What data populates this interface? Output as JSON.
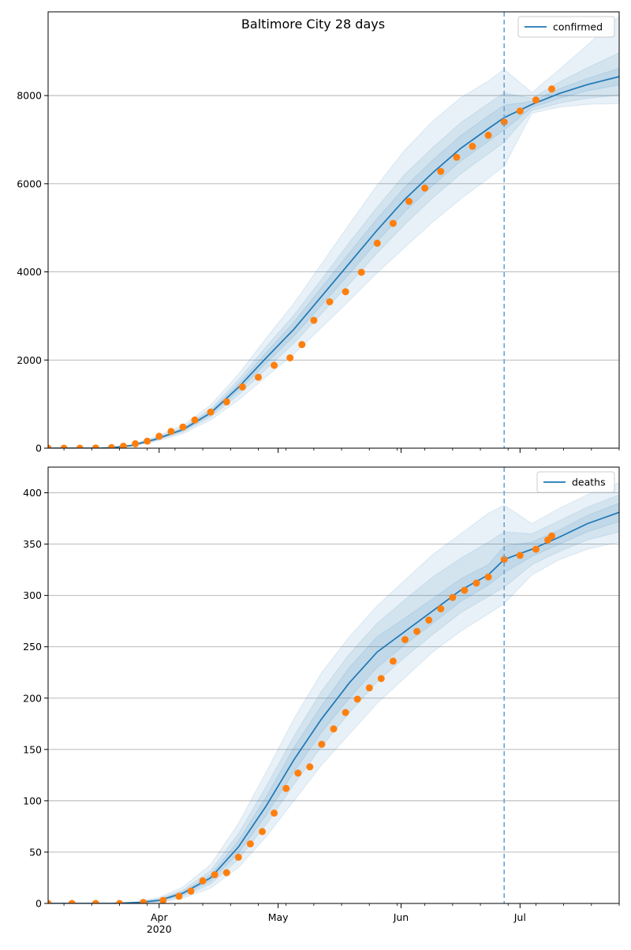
{
  "title": "Baltimore City 28 days",
  "colors": {
    "fit_line": "#1f77b4",
    "observed": "#ff7f0e",
    "band": "#1f77b4",
    "grid": "#b0b0b0",
    "forecast_divider": "#6aa4d6"
  },
  "x_axis": {
    "tick_labels": [
      "Apr",
      "May",
      "Jun",
      "Jul"
    ],
    "tick_dates": [
      "2020-04-01",
      "2020-05-01",
      "2020-06-01",
      "2020-07-01"
    ],
    "year_label": "2020",
    "range": [
      "2020-03-04",
      "2020-07-26"
    ],
    "minor_ticks": "weekly"
  },
  "chart_data": [
    {
      "type": "line",
      "legend": "confirmed",
      "legend_position": "top-right",
      "grid": "horizontal",
      "ylim": [
        0,
        9900
      ],
      "yticks": [
        0,
        2000,
        4000,
        6000,
        8000
      ],
      "forecast_start": "2020-06-27",
      "fit": {
        "name": "confirmed",
        "x": [
          "2020-03-04",
          "2020-03-10",
          "2020-03-17",
          "2020-03-20",
          "2020-03-25",
          "2020-03-31",
          "2020-04-07",
          "2020-04-14",
          "2020-04-21",
          "2020-04-28",
          "2020-05-05",
          "2020-05-12",
          "2020-05-19",
          "2020-05-26",
          "2020-06-02",
          "2020-06-09",
          "2020-06-16",
          "2020-06-23",
          "2020-06-27",
          "2020-07-04",
          "2020-07-11",
          "2020-07-18",
          "2020-07-26"
        ],
        "y": [
          0,
          0,
          0,
          10,
          60,
          200,
          420,
          800,
          1380,
          2050,
          2700,
          3450,
          4200,
          4950,
          5650,
          6250,
          6800,
          7250,
          7500,
          7800,
          8050,
          8250,
          8430
        ]
      },
      "bands": [
        {
          "level": "outer",
          "lower": [
            0,
            0,
            0,
            5,
            40,
            150,
            330,
            640,
            1090,
            1620,
            2140,
            2740,
            3350,
            3980,
            4560,
            5130,
            5650,
            6120,
            6400,
            7600,
            7740,
            7800,
            7820
          ],
          "upper": [
            0,
            0,
            0,
            15,
            80,
            260,
            520,
            980,
            1680,
            2500,
            3290,
            4190,
            5090,
            5970,
            6770,
            7420,
            7950,
            8330,
            8600,
            8070,
            8600,
            9150,
            9800
          ]
        },
        {
          "level": "middle",
          "lower": [
            0,
            0,
            0,
            7,
            48,
            170,
            370,
            710,
            1210,
            1800,
            2380,
            3060,
            3730,
            4430,
            5080,
            5680,
            6220,
            6680,
            6940,
            7660,
            7830,
            7940,
            8010
          ],
          "upper": [
            0,
            0,
            0,
            13,
            72,
            230,
            470,
            890,
            1550,
            2300,
            3020,
            3840,
            4670,
            5470,
            6220,
            6820,
            7380,
            7820,
            8060,
            7940,
            8310,
            8630,
            8970
          ]
        },
        {
          "level": "inner",
          "lower": [
            0,
            0,
            0,
            9,
            55,
            185,
            395,
            755,
            1300,
            1930,
            2540,
            3250,
            3960,
            4690,
            5370,
            5960,
            6510,
            6960,
            7220,
            7730,
            7940,
            8110,
            8240
          ],
          "upper": [
            0,
            0,
            0,
            11,
            65,
            215,
            445,
            845,
            1460,
            2170,
            2860,
            3650,
            4440,
            5210,
            5930,
            6540,
            7090,
            7540,
            7780,
            7870,
            8160,
            8390,
            8620
          ]
        }
      ],
      "observed": {
        "name": "observed",
        "x": [
          "2020-03-04",
          "2020-03-08",
          "2020-03-12",
          "2020-03-16",
          "2020-03-20",
          "2020-03-23",
          "2020-03-26",
          "2020-03-29",
          "2020-04-01",
          "2020-04-04",
          "2020-04-07",
          "2020-04-10",
          "2020-04-14",
          "2020-04-18",
          "2020-04-22",
          "2020-04-26",
          "2020-04-30",
          "2020-05-04",
          "2020-05-07",
          "2020-05-10",
          "2020-05-14",
          "2020-05-18",
          "2020-05-22",
          "2020-05-26",
          "2020-05-30",
          "2020-06-03",
          "2020-06-07",
          "2020-06-11",
          "2020-06-15",
          "2020-06-19",
          "2020-06-23",
          "2020-06-27",
          "2020-07-01",
          "2020-07-05",
          "2020-07-09"
        ],
        "y": [
          0,
          0,
          0,
          5,
          15,
          45,
          100,
          160,
          270,
          380,
          480,
          640,
          820,
          1050,
          1390,
          1610,
          1880,
          2050,
          2350,
          2900,
          3320,
          3550,
          3990,
          4650,
          5100,
          5600,
          5900,
          6280,
          6600,
          6850,
          7100,
          7400,
          7650,
          7900,
          8150
        ]
      }
    },
    {
      "type": "line",
      "legend": "deaths",
      "legend_position": "top-right",
      "grid": "horizontal",
      "ylim": [
        0,
        425
      ],
      "yticks": [
        0,
        50,
        100,
        150,
        200,
        250,
        300,
        350,
        400
      ],
      "forecast_start": "2020-06-27",
      "fit": {
        "name": "deaths",
        "x": [
          "2020-03-04",
          "2020-03-20",
          "2020-03-27",
          "2020-04-01",
          "2020-04-07",
          "2020-04-14",
          "2020-04-21",
          "2020-04-28",
          "2020-05-05",
          "2020-05-12",
          "2020-05-19",
          "2020-05-26",
          "2020-06-02",
          "2020-06-09",
          "2020-06-16",
          "2020-06-23",
          "2020-06-27",
          "2020-07-04",
          "2020-07-11",
          "2020-07-18",
          "2020-07-26"
        ],
        "y": [
          0,
          0,
          1,
          3,
          10,
          25,
          55,
          95,
          140,
          180,
          215,
          245,
          265,
          285,
          305,
          320,
          335,
          345,
          357,
          370,
          381
        ]
      },
      "bands": [
        {
          "level": "outer",
          "lower": [
            0,
            0,
            0,
            1,
            5,
            15,
            35,
            65,
            100,
            135,
            165,
            195,
            220,
            245,
            265,
            282,
            292,
            320,
            335,
            345,
            352
          ],
          "upper": [
            0,
            0,
            2,
            6,
            16,
            38,
            78,
            128,
            180,
            225,
            260,
            290,
            315,
            340,
            360,
            380,
            388,
            370,
            385,
            398,
            410
          ]
        },
        {
          "level": "middle",
          "lower": [
            0,
            0,
            0.5,
            1.8,
            7,
            19,
            43,
            77,
            116,
            153,
            186,
            216,
            240,
            262,
            283,
            299,
            308,
            330,
            343,
            354,
            362
          ],
          "upper": [
            0,
            0,
            1.6,
            4.6,
            13,
            32,
            68,
            114,
            163,
            207,
            243,
            273,
            296,
            318,
            336,
            352,
            362,
            360,
            373,
            386,
            398
          ]
        },
        {
          "level": "inner",
          "lower": [
            0,
            0,
            0.7,
            2.3,
            8.5,
            22,
            49,
            86,
            128,
            167,
            200,
            230,
            252,
            273,
            294,
            310,
            322,
            338,
            350,
            362,
            372
          ],
          "upper": [
            0,
            0,
            1.3,
            3.7,
            11.5,
            28,
            61,
            104,
            152,
            193,
            230,
            260,
            278,
            297,
            316,
            330,
            348,
            352,
            364,
            378,
            390
          ]
        }
      ],
      "observed": {
        "name": "observed",
        "x": [
          "2020-03-04",
          "2020-03-10",
          "2020-03-16",
          "2020-03-22",
          "2020-03-28",
          "2020-04-02",
          "2020-04-06",
          "2020-04-09",
          "2020-04-12",
          "2020-04-15",
          "2020-04-18",
          "2020-04-21",
          "2020-04-24",
          "2020-04-27",
          "2020-04-30",
          "2020-05-03",
          "2020-05-06",
          "2020-05-09",
          "2020-05-12",
          "2020-05-15",
          "2020-05-18",
          "2020-05-21",
          "2020-05-24",
          "2020-05-27",
          "2020-05-30",
          "2020-06-02",
          "2020-06-05",
          "2020-06-08",
          "2020-06-11",
          "2020-06-14",
          "2020-06-17",
          "2020-06-20",
          "2020-06-23",
          "2020-06-27",
          "2020-07-01",
          "2020-07-05",
          "2020-07-08",
          "2020-07-09"
        ],
        "y": [
          0,
          0,
          0,
          0,
          1,
          3,
          7,
          12,
          22,
          28,
          30,
          45,
          58,
          70,
          88,
          112,
          127,
          133,
          155,
          170,
          186,
          199,
          210,
          219,
          236,
          257,
          265,
          276,
          287,
          298,
          305,
          312,
          318,
          335,
          339,
          345,
          354,
          358
        ]
      }
    }
  ]
}
